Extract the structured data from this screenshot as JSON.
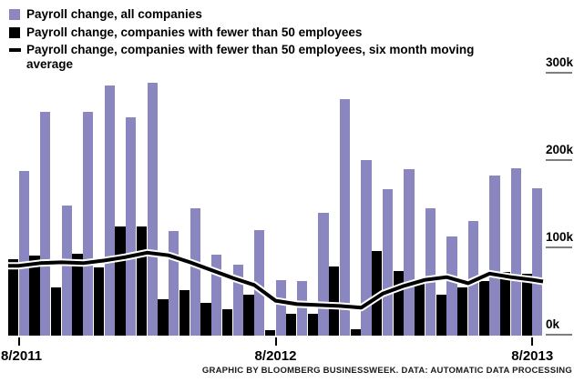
{
  "legend": {
    "items": [
      {
        "label": "Payroll change, all companies",
        "swatch": "purple-square"
      },
      {
        "label": "Payroll change, companies with fewer than 50 employees",
        "swatch": "black-square"
      },
      {
        "label": "Payroll change, companies with fewer than 50 employees, six month moving average",
        "swatch": "black-dash"
      }
    ]
  },
  "colors": {
    "all_companies": "#8a87c0",
    "small_companies": "#000000",
    "moving_average_line": "#000000",
    "moving_average_casing": "#ffffff",
    "gridline": "#7d7d7d",
    "text": "#000000"
  },
  "chart_data": {
    "type": "bar",
    "title": "",
    "xlabel": "",
    "ylabel": "",
    "ylim": [
      0,
      300
    ],
    "y_unit": "thousands of jobs",
    "y_tick_labels": [
      "300k",
      "200k",
      "100k",
      "0k"
    ],
    "y_tick_values": [
      300,
      200,
      100,
      0
    ],
    "x_tick_labels": [
      {
        "month_index": 0,
        "label": "8/2011"
      },
      {
        "month_index": 12,
        "label": "8/2012"
      },
      {
        "month_index": 24,
        "label": "8/2013"
      }
    ],
    "n_months": 25,
    "series": [
      {
        "name": "Payroll change, all companies",
        "type": "bar",
        "values": [
          189,
          256,
          149,
          256,
          286,
          250,
          290,
          120,
          146,
          93,
          81,
          121,
          64,
          62,
          141,
          271,
          201,
          168,
          191,
          146,
          114,
          131,
          183,
          192,
          169
        ]
      },
      {
        "name": "Payroll change, companies with fewer than 50 employees",
        "type": "bar",
        "values": [
          87,
          92,
          55,
          94,
          78,
          125,
          125,
          42,
          52,
          38,
          30,
          47,
          6,
          25,
          25,
          79,
          7,
          97,
          74,
          60,
          47,
          55,
          62,
          73,
          71
        ]
      },
      {
        "name": "Payroll change, companies with fewer than 50 employees, six month moving average",
        "type": "line",
        "values": [
          80,
          83,
          84,
          83,
          86,
          90,
          95,
          92,
          84,
          75,
          66,
          58,
          40,
          36,
          35,
          34,
          32,
          48,
          57,
          64,
          67,
          60,
          71,
          67,
          64
        ]
      }
    ],
    "legend_position": "top-left",
    "grid": "right-edge tick underlines only"
  },
  "footer": {
    "credit": "GRAPHIC BY BLOOMBERG BUSINESSWEEK. DATA: AUTOMATIC DATA PROCESSING"
  }
}
